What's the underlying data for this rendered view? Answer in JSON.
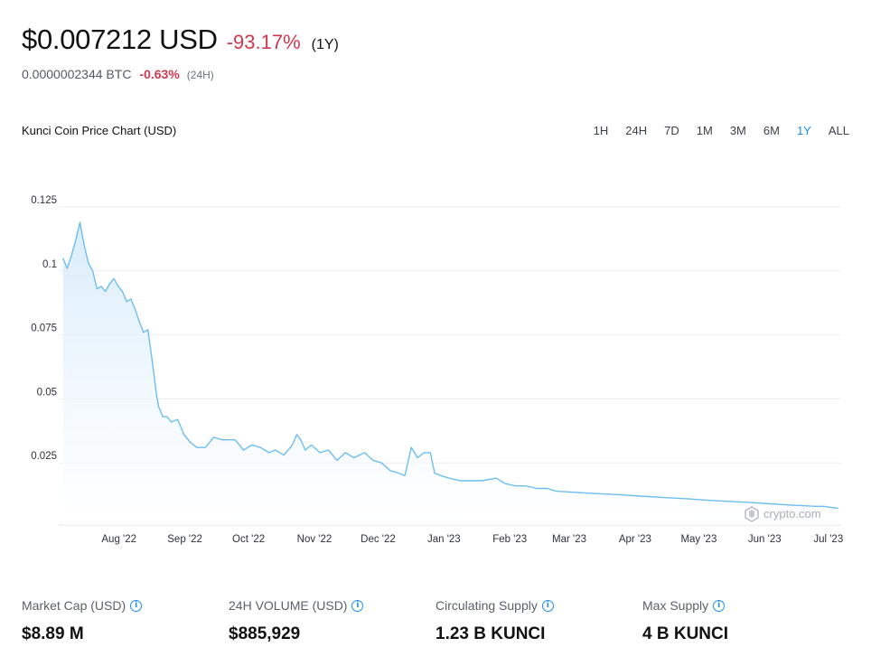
{
  "header": {
    "price_usd": "$0.007212 USD",
    "change_1y": "-93.17%",
    "period_1y": "(1Y)",
    "price_btc": "0.0000002344 BTC",
    "change_24h": "-0.63%",
    "period_24h": "(24H)"
  },
  "chart_title": "Kunci Coin Price Chart (USD)",
  "range_tabs": [
    {
      "label": "1H",
      "active": false
    },
    {
      "label": "24H",
      "active": false
    },
    {
      "label": "7D",
      "active": false
    },
    {
      "label": "1M",
      "active": false
    },
    {
      "label": "3M",
      "active": false
    },
    {
      "label": "6M",
      "active": false
    },
    {
      "label": "1Y",
      "active": true
    },
    {
      "label": "ALL",
      "active": false
    }
  ],
  "colors": {
    "accent": "#1b8ff0",
    "line": "#6dbef0",
    "negative": "#d0384e",
    "grid": "#ebedf0"
  },
  "watermark": "crypto.com",
  "chart_data": {
    "type": "area",
    "title": "Kunci Coin Price Chart (USD)",
    "xlabel": "",
    "ylabel": "",
    "ylim": [
      0,
      0.125
    ],
    "grid": true,
    "y_ticks": [
      {
        "value": 0.025,
        "label": "0.025"
      },
      {
        "value": 0.05,
        "label": "0.05"
      },
      {
        "value": 0.075,
        "label": "0.075"
      },
      {
        "value": 0.1,
        "label": "0.1"
      },
      {
        "value": 0.125,
        "label": "0.125"
      }
    ],
    "x_ticks": [
      {
        "date": "2022-08-01",
        "label": "Aug '22"
      },
      {
        "date": "2022-09-01",
        "label": "Sep '22"
      },
      {
        "date": "2022-10-01",
        "label": "Oct '22"
      },
      {
        "date": "2022-11-01",
        "label": "Nov '22"
      },
      {
        "date": "2022-12-01",
        "label": "Dec '22"
      },
      {
        "date": "2023-01-01",
        "label": "Jan '23"
      },
      {
        "date": "2023-02-01",
        "label": "Feb '23"
      },
      {
        "date": "2023-03-01",
        "label": "Mar '23"
      },
      {
        "date": "2023-04-01",
        "label": "Apr '23"
      },
      {
        "date": "2023-05-01",
        "label": "May '23"
      },
      {
        "date": "2023-06-01",
        "label": "Jun '23"
      },
      {
        "date": "2023-07-01",
        "label": "Jul '23"
      }
    ],
    "series": [
      {
        "x": [
          "2022-07-12",
          "2022-07-14",
          "2022-07-16",
          "2022-07-18",
          "2022-07-20",
          "2022-07-22",
          "2022-07-24",
          "2022-07-26",
          "2022-07-28",
          "2022-07-30",
          "2022-08-01",
          "2022-08-03",
          "2022-08-05",
          "2022-08-07",
          "2022-08-09",
          "2022-08-11",
          "2022-08-13",
          "2022-08-15",
          "2022-08-17",
          "2022-08-19",
          "2022-08-21",
          "2022-08-23",
          "2022-08-25",
          "2022-08-26",
          "2022-08-28",
          "2022-08-30",
          "2022-09-01",
          "2022-09-04",
          "2022-09-07",
          "2022-09-10",
          "2022-09-13",
          "2022-09-17",
          "2022-09-21",
          "2022-09-25",
          "2022-10-01",
          "2022-10-05",
          "2022-10-09",
          "2022-10-13",
          "2022-10-17",
          "2022-10-20",
          "2022-10-24",
          "2022-10-28",
          "2022-10-30",
          "2022-11-01",
          "2022-11-03",
          "2022-11-06",
          "2022-11-10",
          "2022-11-14",
          "2022-11-18",
          "2022-11-22",
          "2022-11-26",
          "2022-12-01",
          "2022-12-05",
          "2022-12-09",
          "2022-12-13",
          "2022-12-17",
          "2022-12-20",
          "2022-12-23",
          "2022-12-26",
          "2022-12-29",
          "2023-01-01",
          "2023-01-03",
          "2023-01-06",
          "2023-01-10",
          "2023-01-15",
          "2023-01-20",
          "2023-01-25",
          "2023-02-01",
          "2023-02-05",
          "2023-02-10",
          "2023-02-15",
          "2023-02-20",
          "2023-02-25",
          "2023-03-01",
          "2023-03-10",
          "2023-03-20",
          "2023-04-01",
          "2023-04-10",
          "2023-04-20",
          "2023-05-01",
          "2023-05-10",
          "2023-05-20",
          "2023-06-01",
          "2023-06-10",
          "2023-06-20",
          "2023-07-01",
          "2023-07-05",
          "2023-07-12"
        ],
        "values": [
          0.105,
          0.101,
          0.106,
          0.112,
          0.119,
          0.11,
          0.103,
          0.1,
          0.093,
          0.094,
          0.092,
          0.095,
          0.097,
          0.094,
          0.092,
          0.088,
          0.089,
          0.085,
          0.08,
          0.076,
          0.077,
          0.065,
          0.052,
          0.047,
          0.043,
          0.043,
          0.041,
          0.042,
          0.036,
          0.033,
          0.031,
          0.031,
          0.035,
          0.034,
          0.034,
          0.03,
          0.032,
          0.031,
          0.029,
          0.03,
          0.028,
          0.032,
          0.036,
          0.034,
          0.03,
          0.032,
          0.029,
          0.03,
          0.026,
          0.029,
          0.027,
          0.029,
          0.026,
          0.025,
          0.022,
          0.021,
          0.02,
          0.031,
          0.027,
          0.029,
          0.029,
          0.021,
          0.02,
          0.019,
          0.018,
          0.018,
          0.018,
          0.019,
          0.017,
          0.016,
          0.016,
          0.015,
          0.015,
          0.014,
          0.0135,
          0.013,
          0.0125,
          0.012,
          0.0115,
          0.011,
          0.0105,
          0.01,
          0.0095,
          0.009,
          0.0085,
          0.008,
          0.008,
          0.0072
        ]
      }
    ]
  },
  "stats": [
    {
      "label": "Market Cap (USD)",
      "value": "$8.89 M"
    },
    {
      "label": "24H VOLUME (USD)",
      "value": "$885,929"
    },
    {
      "label": "Circulating Supply",
      "value": "1.23 B KUNCI"
    },
    {
      "label": "Max Supply",
      "value": "4 B KUNCI"
    }
  ]
}
